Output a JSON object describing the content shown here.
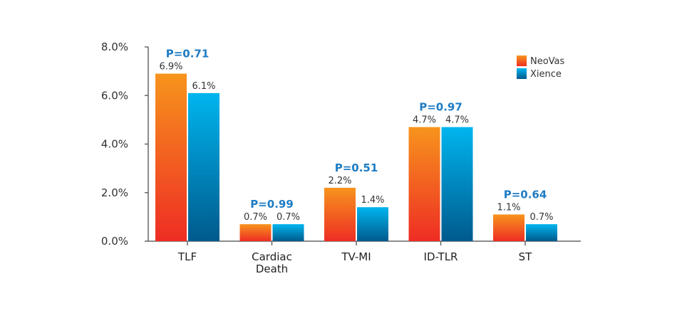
{
  "chart_data": {
    "type": "bar",
    "title": "",
    "xlabel": "",
    "ylabel": "",
    "ylim": [
      0,
      8
    ],
    "yticks": [
      "0.0%",
      "2.0%",
      "4.0%",
      "6.0%",
      "8.0%"
    ],
    "grid": false,
    "legend_position": "top-right",
    "categories": [
      "TLF",
      "Cardiac Death",
      "TV-MI",
      "ID-TLR",
      "ST"
    ],
    "series": [
      {
        "name": "NeoVas",
        "values": [
          6.9,
          0.7,
          2.2,
          4.7,
          1.1
        ],
        "labels": [
          "6.9%",
          "0.7%",
          "2.2%",
          "4.7%",
          "1.1%"
        ],
        "color_top": "#f7941d",
        "color_bottom": "#ee2d24"
      },
      {
        "name": "Xience",
        "values": [
          6.1,
          0.7,
          1.4,
          4.7,
          0.7
        ],
        "labels": [
          "6.1%",
          "0.7%",
          "1.4%",
          "4.7%",
          "0.7%"
        ],
        "color_top": "#00b5ef",
        "color_bottom": "#005a8c"
      }
    ],
    "annotations": [
      "P=0.71",
      "P=0.99",
      "P=0.51",
      "P=0.97",
      "P=0.64"
    ],
    "annotation_color": "#1f7cc4"
  }
}
